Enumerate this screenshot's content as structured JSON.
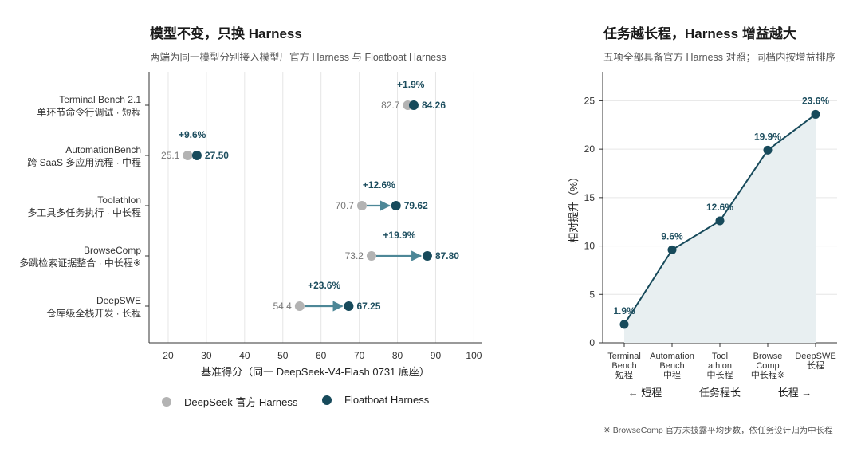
{
  "left": {
    "title": "模型不变，只换 Harness",
    "subtitle": "两端为同一模型分别接入模型厂官方 Harness 与 Floatboat Harness",
    "legend": {
      "base_label": "DeepSeek 官方 Harness",
      "float_label": "Floatboat Harness"
    }
  },
  "right": {
    "title": "任务越长程，Harness 增益越大",
    "subtitle": "五项全部具备官方 Harness 对照；同档内按增益排序",
    "footnote": "※ BrowseComp 官方未披露平均步数，依任务设计归为中长程",
    "direction_labels": [
      "← 短程",
      "任务程长",
      "长程 →"
    ]
  },
  "colors": {
    "base": "#b3b3b3",
    "float": "#174a5b",
    "arrow": "#4d8797",
    "area": "#e8eff1",
    "grid": "#e6e6e6"
  },
  "chart_data": [
    {
      "type": "dumbbell",
      "xlabel": "基准得分（同一 DeepSeek-V4-Flash 0731 底座）",
      "xlim": [
        15,
        102
      ],
      "xticks": [
        "20",
        "30",
        "40",
        "50",
        "60",
        "70",
        "80",
        "90",
        "100"
      ],
      "series": [
        {
          "name": "DeepSeek 官方 Harness",
          "values": [
            82.7,
            25.1,
            70.7,
            73.2,
            54.4
          ]
        },
        {
          "name": "Floatboat Harness",
          "values": [
            84.26,
            27.5,
            79.62,
            87.8,
            67.25
          ]
        }
      ],
      "categories": [
        {
          "en": "Terminal Bench 2.1",
          "zh": "单环节命令行调试 · 短程",
          "base_label": "82.7",
          "float_label": "84.26",
          "gain": "+1.9%"
        },
        {
          "en": "AutomationBench",
          "zh": "跨 SaaS 多应用流程 · 中程",
          "base_label": "25.1",
          "float_label": "27.50",
          "gain": "+9.6%"
        },
        {
          "en": "Toolathlon",
          "zh": "多工具多任务执行 · 中长程",
          "base_label": "70.7",
          "float_label": "79.62",
          "gain": "+12.6%"
        },
        {
          "en": "BrowseComp",
          "zh": "多跳检索证据整合 · 中长程※",
          "base_label": "73.2",
          "float_label": "87.80",
          "gain": "+19.9%"
        },
        {
          "en": "DeepSWE",
          "zh": "仓库级全栈开发 · 长程",
          "base_label": "54.4",
          "float_label": "67.25",
          "gain": "+23.6%"
        }
      ]
    },
    {
      "type": "area",
      "ylabel": "相对提升（%）",
      "ylim": [
        0,
        28
      ],
      "yticks": [
        "0",
        "5",
        "10",
        "15",
        "20",
        "25"
      ],
      "categories": [
        [
          "Terminal",
          "Bench",
          "短程"
        ],
        [
          "Automation",
          "Bench",
          "中程"
        ],
        [
          "Tool",
          "athlon",
          "中长程"
        ],
        [
          "Browse",
          "Comp",
          "中长程※"
        ],
        [
          "DeepSWE",
          "长程"
        ]
      ],
      "values": [
        1.9,
        9.6,
        12.6,
        19.9,
        23.6
      ],
      "labels": [
        "1.9%",
        "9.6%",
        "12.6%",
        "19.9%",
        "23.6%"
      ]
    }
  ]
}
